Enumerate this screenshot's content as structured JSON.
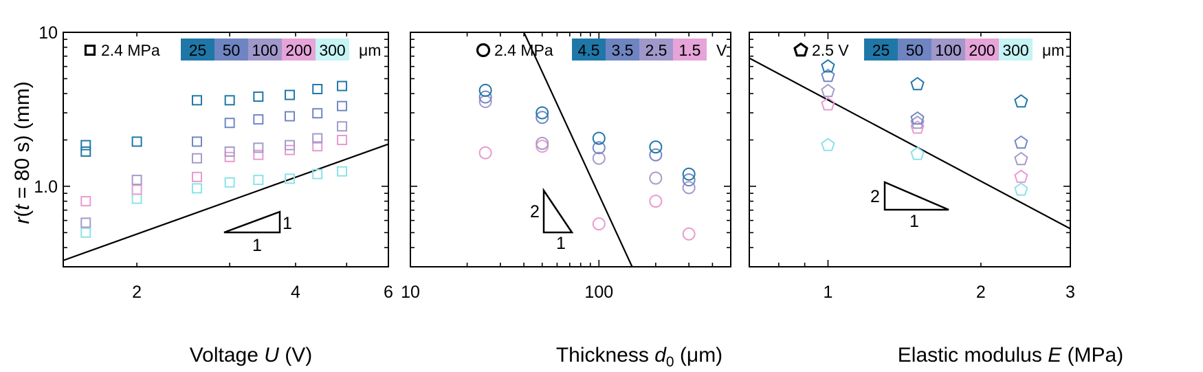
{
  "chart_data": [
    {
      "type": "scatter",
      "marker": "square",
      "xscale": "log",
      "yscale": "log",
      "xlim": [
        1.45,
        6.0
      ],
      "ylim": [
        0.3,
        10
      ],
      "xticks": [
        {
          "value": 2,
          "label": "2"
        },
        {
          "value": 4,
          "label": "4"
        },
        {
          "value": 6,
          "label": "6"
        }
      ],
      "yticks": [
        {
          "value": 1,
          "label": "1.0"
        },
        {
          "value": 10,
          "label": "10"
        }
      ],
      "xlabel_parts": [
        "Voltage ",
        "U",
        " (V)"
      ],
      "ylabel_parts": [
        "r",
        "(",
        "t",
        " = 80 s) (mm)"
      ],
      "legend_label": "2.4 MPa",
      "colorbar": {
        "labels": [
          "25",
          "50",
          "100",
          "200",
          "300"
        ],
        "unit": "μm"
      },
      "series": [
        {
          "name": "25",
          "color": "#1f77a8",
          "points": [
            [
              1.6,
              1.68
            ],
            [
              1.6,
              1.85
            ],
            [
              2.0,
              1.95
            ],
            [
              2.6,
              3.62
            ],
            [
              3.0,
              3.62
            ],
            [
              3.4,
              3.82
            ],
            [
              3.9,
              3.92
            ],
            [
              4.4,
              4.28
            ],
            [
              4.9,
              4.48
            ]
          ]
        },
        {
          "name": "50",
          "color": "#7187c4",
          "points": [
            [
              2.6,
              1.95
            ],
            [
              3.0,
              2.58
            ],
            [
              3.4,
              2.72
            ],
            [
              3.9,
              2.85
            ],
            [
              4.4,
              2.98
            ],
            [
              4.9,
              3.32
            ]
          ]
        },
        {
          "name": "100",
          "color": "#a59ac8",
          "points": [
            [
              1.6,
              0.58
            ],
            [
              2.0,
              1.1
            ],
            [
              2.6,
              1.52
            ],
            [
              3.0,
              1.68
            ],
            [
              3.4,
              1.78
            ],
            [
              3.9,
              1.85
            ],
            [
              4.4,
              2.05
            ],
            [
              4.9,
              2.45
            ]
          ]
        },
        {
          "name": "200",
          "color": "#e79ad0",
          "points": [
            [
              1.6,
              0.8
            ],
            [
              2.0,
              0.95
            ],
            [
              2.6,
              1.15
            ],
            [
              3.0,
              1.55
            ],
            [
              3.4,
              1.6
            ],
            [
              3.9,
              1.72
            ],
            [
              4.4,
              1.82
            ],
            [
              4.9,
              2.0
            ]
          ]
        },
        {
          "name": "300",
          "color": "#8ae3e8",
          "points": [
            [
              1.6,
              0.5
            ],
            [
              2.0,
              0.83
            ],
            [
              2.6,
              0.97
            ],
            [
              3.0,
              1.06
            ],
            [
              3.4,
              1.1
            ],
            [
              3.9,
              1.12
            ],
            [
              4.4,
              1.2
            ],
            [
              4.9,
              1.25
            ]
          ]
        }
      ],
      "fit_line": {
        "x": [
          1.45,
          6.0
        ],
        "y": [
          0.33,
          1.88
        ]
      },
      "slope_triangle": {
        "labels": [
          "1",
          "1"
        ]
      }
    },
    {
      "type": "scatter",
      "marker": "circle",
      "xscale": "log",
      "yscale": "log",
      "xlim": [
        10,
        500
      ],
      "ylim": [
        0.3,
        10
      ],
      "xticks": [
        {
          "value": 10,
          "label": "10"
        },
        {
          "value": 100,
          "label": "100"
        }
      ],
      "yticks": [],
      "xlabel_parts": [
        "Thickness ",
        "d",
        "0",
        " (μm)"
      ],
      "legend_label": "2.4 MPa",
      "colorbar": {
        "labels": [
          "4.5",
          "3.5",
          "2.5",
          "1.5"
        ],
        "unit": "V"
      },
      "series": [
        {
          "name": "4.5",
          "color": "#1f77a8",
          "points": [
            [
              25,
              4.2
            ],
            [
              50,
              3.0
            ],
            [
              100,
              2.05
            ],
            [
              200,
              1.8
            ],
            [
              300,
              1.2
            ]
          ]
        },
        {
          "name": "3.5",
          "color": "#7187c4",
          "points": [
            [
              25,
              3.8
            ],
            [
              50,
              2.8
            ],
            [
              100,
              1.78
            ],
            [
              200,
              1.6
            ],
            [
              300,
              1.1
            ]
          ]
        },
        {
          "name": "2.5",
          "color": "#a59ac8",
          "points": [
            [
              25,
              3.55
            ],
            [
              50,
              1.9
            ],
            [
              100,
              1.52
            ],
            [
              200,
              1.13
            ],
            [
              300,
              0.98
            ]
          ]
        },
        {
          "name": "1.5",
          "color": "#e79ad0",
          "points": [
            [
              25,
              1.65
            ],
            [
              50,
              1.82
            ],
            [
              100,
              0.57
            ],
            [
              200,
              0.8
            ],
            [
              300,
              0.49
            ]
          ]
        }
      ],
      "fit_line": {
        "x": [
          40,
          150
        ],
        "y": [
          10,
          0.3
        ]
      },
      "slope_triangle": {
        "labels": [
          "2",
          "1"
        ]
      }
    },
    {
      "type": "scatter",
      "marker": "pentagon",
      "xscale": "log",
      "yscale": "log",
      "xlim": [
        0.7,
        3.0
      ],
      "ylim": [
        0.3,
        10
      ],
      "xticks": [
        {
          "value": 1,
          "label": "1"
        },
        {
          "value": 2,
          "label": "2"
        },
        {
          "value": 3,
          "label": "3"
        }
      ],
      "yticks": [],
      "xlabel_parts": [
        "Elastic modulus ",
        "E",
        " (MPa)"
      ],
      "legend_label": "2.5 V",
      "colorbar": {
        "labels": [
          "25",
          "50",
          "100",
          "200",
          "300"
        ],
        "unit": "μm"
      },
      "series": [
        {
          "name": "25",
          "color": "#1f77a8",
          "points": [
            [
              1.0,
              6.0
            ],
            [
              1.5,
              4.6
            ],
            [
              2.4,
              3.55
            ]
          ]
        },
        {
          "name": "50",
          "color": "#7187c4",
          "points": [
            [
              1.0,
              5.2
            ],
            [
              1.5,
              2.75
            ],
            [
              2.4,
              1.92
            ]
          ]
        },
        {
          "name": "100",
          "color": "#a59ac8",
          "points": [
            [
              1.0,
              4.15
            ],
            [
              1.5,
              2.58
            ],
            [
              2.4,
              1.5
            ]
          ]
        },
        {
          "name": "200",
          "color": "#e79ad0",
          "points": [
            [
              1.0,
              3.4
            ],
            [
              1.5,
              2.4
            ],
            [
              2.4,
              1.15
            ]
          ]
        },
        {
          "name": "300",
          "color": "#8ae3e8",
          "points": [
            [
              1.0,
              1.85
            ],
            [
              1.5,
              1.62
            ],
            [
              2.4,
              0.95
            ]
          ]
        }
      ],
      "fit_line": {
        "x": [
          0.7,
          3.0
        ],
        "y": [
          6.8,
          0.53
        ]
      },
      "slope_triangle": {
        "labels": [
          "2",
          "1"
        ]
      }
    }
  ]
}
